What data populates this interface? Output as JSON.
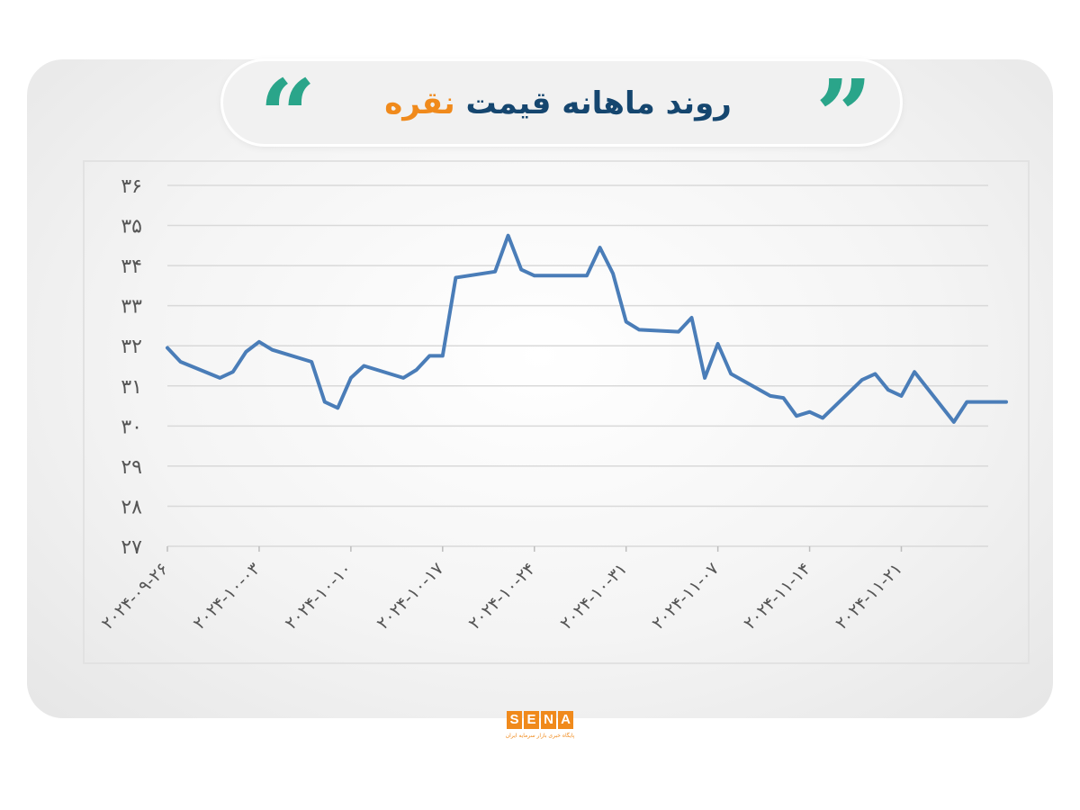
{
  "header": {
    "title_main": "روند ماهانه قیمت",
    "title_accent": "نقره",
    "quote_open_glyph": "“",
    "quote_close_glyph": "”"
  },
  "colors": {
    "line": "#4a7db8",
    "title_main": "#15466f",
    "title_accent": "#f08a1c",
    "quotes": "#2aa58a",
    "logo": "#f08a1c"
  },
  "logo": {
    "letters": [
      "S",
      "E",
      "N",
      "A"
    ],
    "subtitle": "پایگاه خبری بازار سرمایه ایران"
  },
  "chart_data": {
    "type": "line",
    "title": "روند ماهانه قیمت نقره",
    "xlabel": "",
    "ylabel": "",
    "ylim": [
      27,
      36
    ],
    "y_ticks": [
      27,
      28,
      29,
      30,
      31,
      32,
      33,
      34,
      35,
      36
    ],
    "y_tick_labels": [
      "۲۷",
      "۲۸",
      "۲۹",
      "۳۰",
      "۳۱",
      "۳۲",
      "۳۳",
      "۳۴",
      "۳۵",
      "۳۶"
    ],
    "grid": true,
    "x_tick_dates": [
      "2024-09-26",
      "2024-10-03",
      "2024-10-10",
      "2024-10-17",
      "2024-10-24",
      "2024-10-31",
      "2024-11-07",
      "2024-11-14",
      "2024-11-21"
    ],
    "x_tick_labels": [
      "۲۰۲۴-۰۹-۲۶",
      "۲۰۲۴-۱۰-۰۳",
      "۲۰۲۴-۱۰-۱۰",
      "۲۰۲۴-۱۰-۱۷",
      "۲۰۲۴-۱۰-۲۴",
      "۲۰۲۴-۱۰-۳۱",
      "۲۰۲۴-۱۱-۰۷",
      "۲۰۲۴-۱۱-۱۴",
      "۲۰۲۴-۱۱-۲۱"
    ],
    "x_range": [
      "2024-09-26",
      "2024-11-29"
    ],
    "series": [
      {
        "x": [
          "2024-09-26",
          "2024-09-27",
          "2024-09-30",
          "2024-10-01",
          "2024-10-02",
          "2024-10-03",
          "2024-10-04",
          "2024-10-07",
          "2024-10-08",
          "2024-10-09",
          "2024-10-10",
          "2024-10-11",
          "2024-10-14",
          "2024-10-15",
          "2024-10-16",
          "2024-10-17",
          "2024-10-18",
          "2024-10-21",
          "2024-10-22",
          "2024-10-23",
          "2024-10-24",
          "2024-10-25",
          "2024-10-28",
          "2024-10-29",
          "2024-10-30",
          "2024-10-31",
          "2024-11-01",
          "2024-11-04",
          "2024-11-05",
          "2024-11-06",
          "2024-11-07",
          "2024-11-08",
          "2024-11-11",
          "2024-11-12",
          "2024-11-13",
          "2024-11-14",
          "2024-11-15",
          "2024-11-18",
          "2024-11-19",
          "2024-11-20",
          "2024-11-21",
          "2024-11-22",
          "2024-11-25",
          "2024-11-26",
          "2024-11-27",
          "2024-11-28",
          "2024-11-29"
        ],
        "values": [
          31.95,
          31.6,
          31.2,
          31.35,
          31.85,
          32.1,
          31.9,
          31.6,
          30.6,
          30.45,
          31.2,
          31.5,
          31.2,
          31.4,
          31.75,
          31.75,
          33.7,
          33.85,
          34.75,
          33.9,
          33.75,
          33.75,
          33.75,
          34.45,
          33.8,
          32.6,
          32.4,
          32.35,
          32.7,
          31.2,
          32.05,
          31.3,
          30.75,
          30.7,
          30.25,
          30.35,
          30.2,
          31.15,
          31.3,
          30.9,
          30.75,
          31.35,
          30.1,
          30.6,
          30.6,
          30.6,
          30.6
        ]
      }
    ]
  }
}
